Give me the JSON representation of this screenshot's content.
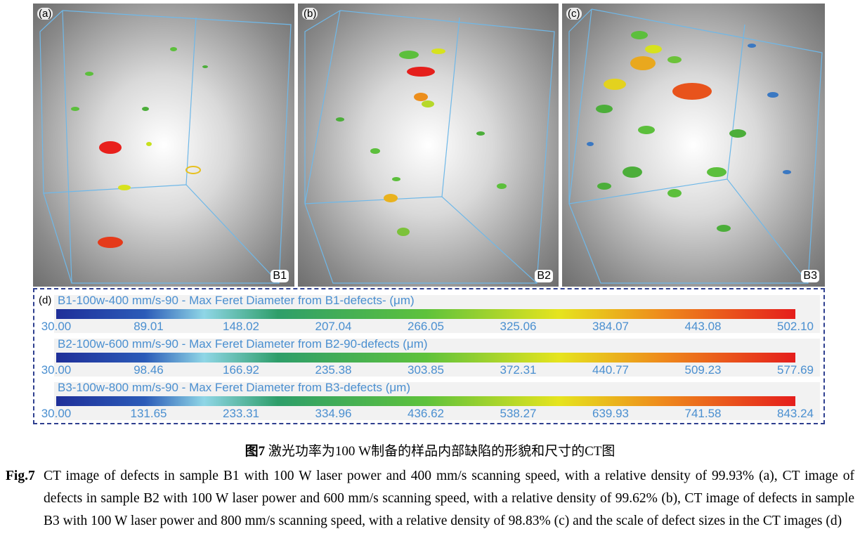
{
  "panels": [
    {
      "letter": "(a)",
      "sample": "B1"
    },
    {
      "letter": "(b)",
      "sample": "B2"
    },
    {
      "letter": "(c)",
      "sample": "B3"
    }
  ],
  "scale_panel": {
    "letter": "(d)",
    "bars": [
      {
        "title": "B1-100w-400 mm/s-90 - Max Feret Diameter from B1-defects- (μm)",
        "ticks": [
          "30.00",
          "89.01",
          "148.02",
          "207.04",
          "266.05",
          "325.06",
          "384.07",
          "443.08",
          "502.10"
        ]
      },
      {
        "title": "B2-100w-600 mm/s-90 - Max Feret Diameter from B2-90-defects (μm)",
        "ticks": [
          "30.00",
          "98.46",
          "166.92",
          "235.38",
          "303.85",
          "372.31",
          "440.77",
          "509.23",
          "577.69"
        ]
      },
      {
        "title": "B3-100w-800 mm/s-90 - Max Feret Diameter from B3-defects (μm)",
        "ticks": [
          "30.00",
          "131.65",
          "233.31",
          "334.96",
          "436.62",
          "538.27",
          "639.93",
          "741.58",
          "843.24"
        ]
      }
    ]
  },
  "caption": {
    "cn_label": "图7",
    "cn_text": "激光功率为100 W制备的样品内部缺陷的形貌和尺寸的CT图",
    "en_label": "Fig.7",
    "en_text": "CT image of defects in sample B1 with 100 W laser power and 400 mm/s scanning speed, with a relative density of 99.93% (a), CT image of defects in sample B2 with 100 W laser power and 600 mm/s scanning speed, with a relative density of 99.62% (b), CT image of defects in sample B3 with 100 W laser power and 800 mm/s scanning speed, with a relative density of 98.83% (c) and the scale of defect sizes in the CT images (d)"
  }
}
